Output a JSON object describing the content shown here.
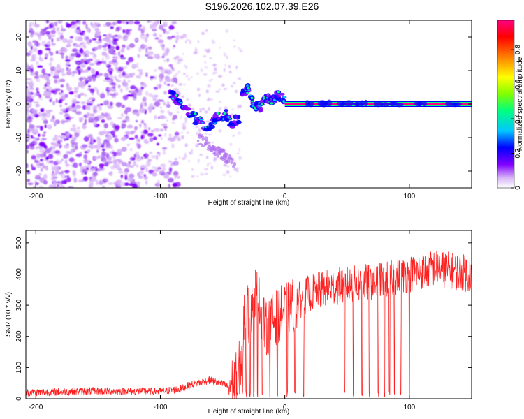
{
  "page_title": "S196.2026.102.07.39.E26",
  "chart_data": [
    {
      "type": "heatmap",
      "title": "S196.2026.102.07.39.E26",
      "xlabel": "Height of straight line (km)",
      "ylabel": "Frequency (Hz)",
      "xlim": [
        -208,
        150
      ],
      "ylim": [
        -25,
        25
      ],
      "xticks": [
        -200,
        -100,
        0,
        100
      ],
      "yticks": [
        -20,
        -10,
        0,
        10,
        20
      ],
      "colorbar": {
        "label": "Normalized spectral amplitude",
        "range": [
          0,
          0.97
        ],
        "ticks": [
          0,
          0.2,
          0.4,
          0.6,
          0.8
        ],
        "colors": [
          "#ffffff",
          "#d8b4f8",
          "#8000ff",
          "#0000ff",
          "#00c8ff",
          "#00ff80",
          "#80ff00",
          "#ffff00",
          "#ff8000",
          "#ff0000",
          "#ff0080"
        ]
      },
      "regions": [
        {
          "label": "noise",
          "x_range": [
            -208,
            -95
          ],
          "freq_range": [
            -25,
            25
          ],
          "amplitude": 0.1
        },
        {
          "label": "descending trace",
          "x": [
            -92,
            -85,
            -78,
            -70,
            -62,
            -55,
            -48,
            -42,
            -36
          ],
          "freq": [
            3,
            1,
            -2,
            -5,
            -7,
            -4,
            -3,
            -6,
            -4
          ],
          "amplitude": 0.3
        },
        {
          "label": "rising trace",
          "x": [
            -35,
            -30,
            -25,
            -20,
            -15,
            -10,
            -5,
            0
          ],
          "freq": [
            2,
            5,
            0,
            -1,
            2,
            1,
            3,
            1
          ],
          "amplitude": 0.45
        },
        {
          "label": "carrier line",
          "x_range": [
            0,
            150
          ],
          "freq": 0,
          "amplitude": 0.95
        }
      ]
    },
    {
      "type": "line",
      "xlabel": "Height of straight line (km)",
      "ylabel": "SNR (10 * v/v)",
      "xlim": [
        -208,
        150
      ],
      "ylim": [
        0,
        540
      ],
      "xticks": [
        -200,
        -100,
        0,
        100
      ],
      "yticks": [
        0,
        100,
        200,
        300,
        400,
        500
      ],
      "color": "#ff2020",
      "series": [
        {
          "name": "SNR",
          "x": [
            -208,
            -180,
            -150,
            -120,
            -100,
            -85,
            -75,
            -60,
            -45,
            -40,
            -35,
            -32,
            -28,
            -25,
            -20,
            -15,
            -10,
            -5,
            0,
            10,
            20,
            30,
            40,
            60,
            80,
            90,
            100,
            120,
            150
          ],
          "values": [
            20,
            22,
            25,
            24,
            24,
            30,
            45,
            60,
            40,
            50,
            120,
            300,
            250,
            360,
            300,
            220,
            250,
            270,
            280,
            310,
            340,
            350,
            360,
            370,
            380,
            390,
            400,
            420,
            400
          ]
        }
      ],
      "dropouts_x": [
        -38,
        -34,
        -31,
        -28,
        -25,
        -22,
        -18,
        -12,
        -6,
        2,
        8,
        15,
        48,
        55,
        62,
        68,
        75,
        80,
        84,
        88,
        93,
        100
      ]
    }
  ]
}
